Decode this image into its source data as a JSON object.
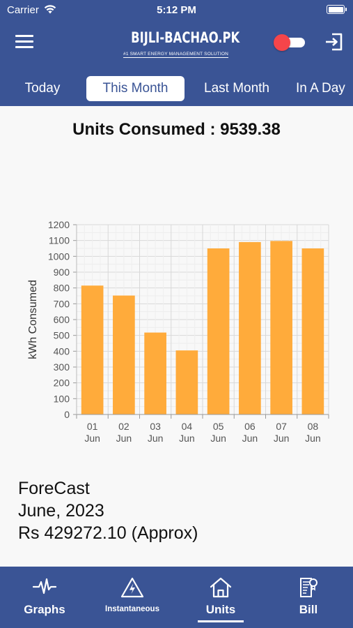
{
  "status_bar": {
    "carrier": "Carrier",
    "time": "5:12 PM"
  },
  "header": {
    "logo_title": "BIJLI-BACHAO.PK",
    "logo_subtitle": "#1 SMART ENERGY MANAGEMENT SOLUTION"
  },
  "tabs": [
    {
      "label": "Today"
    },
    {
      "label": "This Month"
    },
    {
      "label": "Last Month"
    },
    {
      "label": "In A Day"
    }
  ],
  "active_tab": "This Month",
  "units_consumed": "Units Consumed : 9539.38",
  "chart_data": {
    "type": "bar",
    "categories": [
      "01 Jun",
      "02 Jun",
      "03 Jun",
      "04 Jun",
      "05 Jun",
      "06 Jun",
      "07 Jun",
      "08 Jun"
    ],
    "category_lines": [
      [
        "01",
        "Jun"
      ],
      [
        "02",
        "Jun"
      ],
      [
        "03",
        "Jun"
      ],
      [
        "04",
        "Jun"
      ],
      [
        "05",
        "Jun"
      ],
      [
        "06",
        "Jun"
      ],
      [
        "07",
        "Jun"
      ],
      [
        "08",
        "Jun"
      ]
    ],
    "values": [
      815,
      752,
      518,
      405,
      1050,
      1090,
      1097,
      1050
    ],
    "ylabel": "kWh Consumed",
    "xlabel": "",
    "ylim": [
      0,
      1200
    ],
    "yticks": [
      0,
      100,
      200,
      300,
      400,
      500,
      600,
      700,
      800,
      900,
      1000,
      1100,
      1200
    ],
    "grid": true,
    "bar_color": "#ffab3b"
  },
  "forecast": {
    "heading": "ForeCast",
    "period": "June, 2023",
    "amount": "Rs 429272.10 (Approx)"
  },
  "tabbar": {
    "items": [
      {
        "label": "Graphs",
        "icon": "pulse-icon"
      },
      {
        "label": "Instantaneous",
        "icon": "lightning-triangle-icon"
      },
      {
        "label": "Units",
        "icon": "home-icon"
      },
      {
        "label": "Bill",
        "icon": "bill-icon"
      }
    ],
    "active": "Units"
  },
  "colors": {
    "primary": "#3a5495",
    "bar": "#ffab3b",
    "toggle_knob": "#f5454a"
  }
}
